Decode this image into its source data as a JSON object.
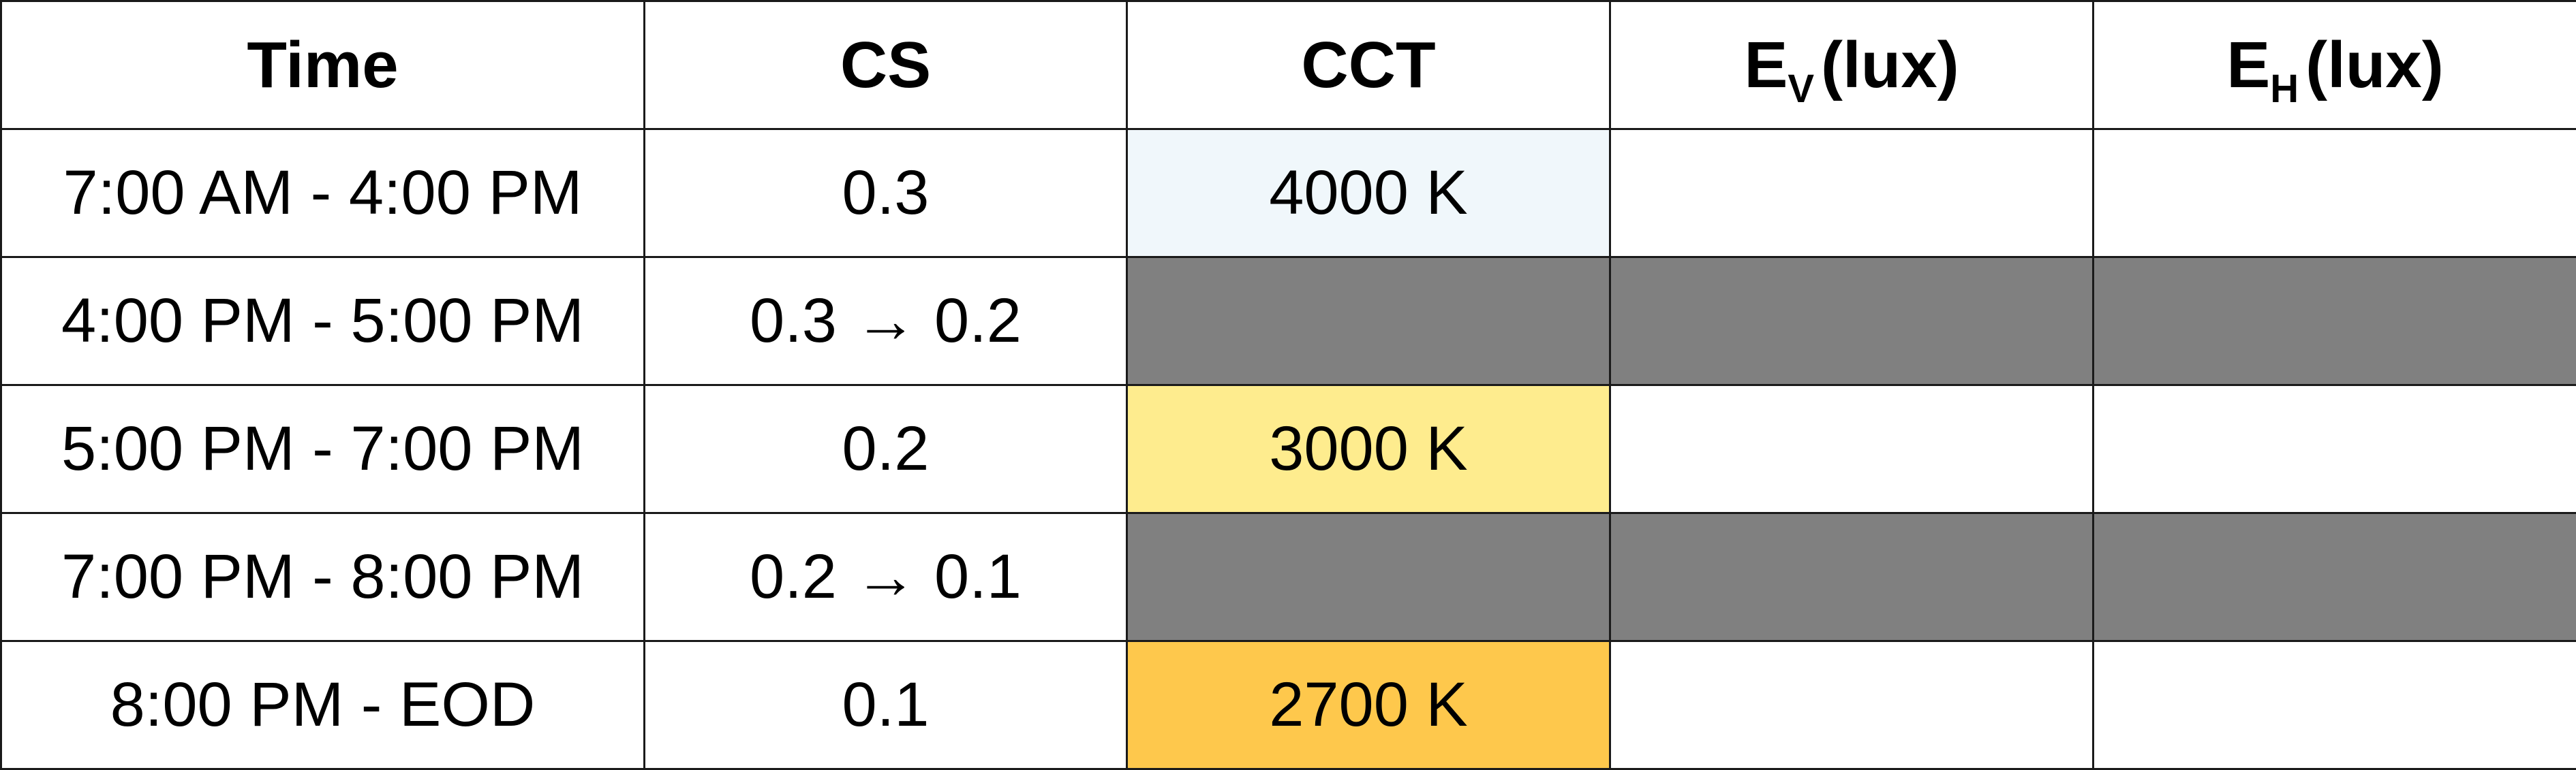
{
  "headers": {
    "time": "Time",
    "cs": "CS",
    "cct": "CCT",
    "ev_main": "E",
    "ev_sub": "V",
    "ev_unit": "(lux)",
    "eh_main": "E",
    "eh_sub": "H",
    "eh_unit": "(lux)"
  },
  "rows": [
    {
      "time": "7:00 AM - 4:00 PM",
      "cs": "0.3",
      "cct": "4000 K",
      "ev": "",
      "eh": "",
      "transition": false
    },
    {
      "time": "4:00 PM - 5:00 PM",
      "cs": "0.3 → 0.2",
      "cct": "",
      "ev": "",
      "eh": "",
      "transition": true
    },
    {
      "time": "5:00 PM - 7:00 PM",
      "cs": "0.2",
      "cct": "3000 K",
      "ev": "",
      "eh": "",
      "transition": false
    },
    {
      "time": "7:00 PM - 8:00 PM",
      "cs": "0.2 → 0.1",
      "cct": "",
      "ev": "",
      "eh": "",
      "transition": true
    },
    {
      "time": "8:00 PM - EOD",
      "cs": "0.1",
      "cct": "2700 K",
      "ev": "",
      "eh": "",
      "transition": false
    }
  ],
  "colors": {
    "border": "#1a1a1a",
    "transition_fill": "#808080",
    "cct_4000": "#f0f7fb",
    "cct_3000": "#feec8e",
    "cct_2700": "#fec84c"
  }
}
